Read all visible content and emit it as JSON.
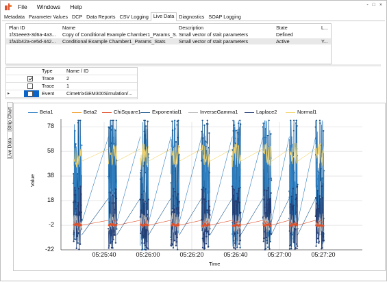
{
  "menu": {
    "file": "File",
    "windows": "Windows",
    "help": "Help"
  },
  "window_controls": [
    "-",
    "□",
    "×"
  ],
  "tabs": [
    "Metadata",
    "Parameter Values",
    "DCP",
    "Data Reports",
    "CSV Logging",
    "Live Data",
    "Diagnostics",
    "SOAP Logging"
  ],
  "active_tab": "Live Data",
  "plans": {
    "headers": [
      "Plan ID",
      "Name",
      "Description",
      "State",
      "L..."
    ],
    "rows": [
      [
        "1f31eee3-3d6a-4a3...",
        "Copy of Conditional Example Chamber1_Params_S...",
        "Small vector of stait parameters",
        "Defined",
        ""
      ],
      [
        "1fa1b42a-ce5d-442...",
        "Conditional Example Chamber1_Params_Stats",
        "Small vector of stait parameters",
        "Active",
        "Y..."
      ]
    ]
  },
  "series_table": {
    "headers": [
      "Type",
      "Name / ID"
    ],
    "rows": [
      {
        "checked": true,
        "type": "Trace",
        "name": "2"
      },
      {
        "checked": false,
        "type": "Trace",
        "name": "1"
      },
      {
        "checked": false,
        "type": "Event",
        "name": "CimetrixGEM300Simulation/...",
        "selected": true
      }
    ]
  },
  "side_tabs": {
    "live": "Live Data",
    "strip": "Strip Chart"
  },
  "chart_data": {
    "type": "line",
    "xlabel": "Time",
    "ylabel": "Value",
    "ylim": [
      -22,
      88
    ],
    "y_ticks": [
      -22,
      -2,
      18,
      38,
      58,
      78
    ],
    "x_ticks": [
      "05:25:40",
      "05:26:00",
      "05:26:20",
      "05:26:40",
      "05:27:00",
      "05:27:20"
    ],
    "grid": true,
    "legend_position": "top",
    "series": [
      {
        "name": "Beta1",
        "color": "#2f7fc1"
      },
      {
        "name": "Beta2",
        "color": "#f0a030"
      },
      {
        "name": "ChiSquare1",
        "color": "#e0502a"
      },
      {
        "name": "Exponential1",
        "color": "#1f5a8f"
      },
      {
        "name": "InverseGamma1",
        "color": "#b9b9b9"
      },
      {
        "name": "Laplace2",
        "color": "#243e74"
      },
      {
        "name": "Normal1",
        "color": "#f5d46a"
      }
    ],
    "burst_times_s": [
      0,
      16,
      30.5,
      44.5,
      58.5,
      72.5,
      86.5,
      98.5,
      110.5
    ],
    "first_time": "05:25:26",
    "burst_approx_levels": {
      "Beta1": [
        -20,
        88
      ],
      "Normal1": [
        45,
        65
      ],
      "InverseGamma1": [
        -8,
        8
      ],
      "ChiSquare1": [
        -2,
        2
      ],
      "Exponential1": [
        -22,
        88
      ],
      "Laplace2": [
        -22,
        30
      ]
    }
  }
}
